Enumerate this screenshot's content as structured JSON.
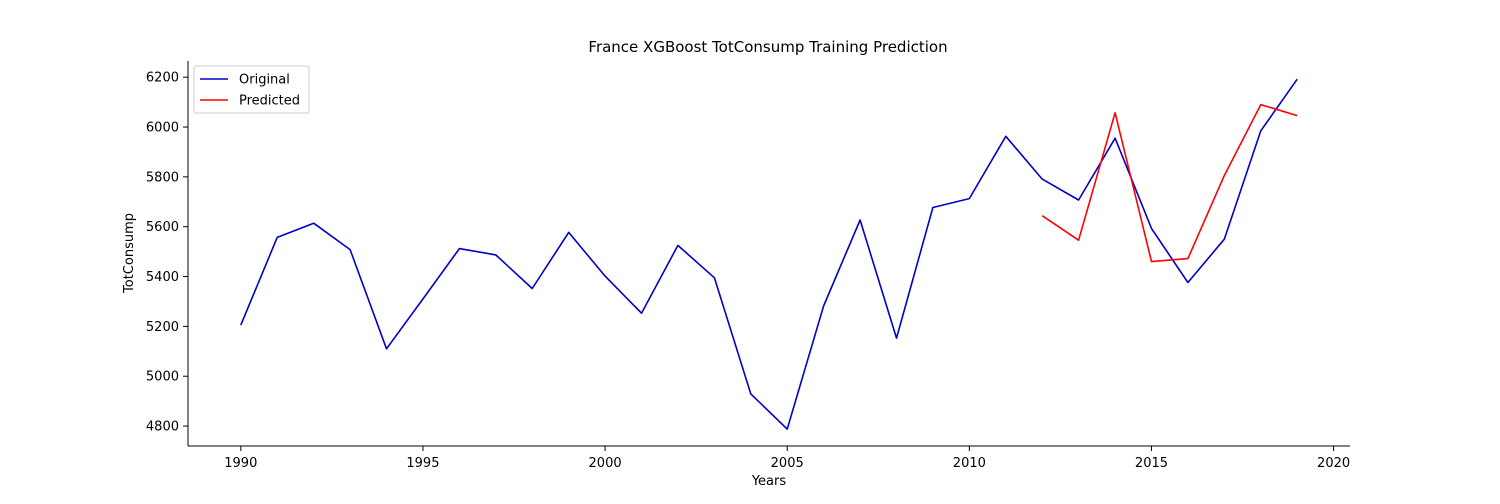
{
  "chart_data": {
    "type": "line",
    "title": "France XGBoost TotConsump Training Prediction",
    "xlabel": "Years",
    "ylabel": "TotConsump",
    "xlim": [
      1988.55,
      2020.45
    ],
    "ylim": [
      4720,
      6265
    ],
    "xticks": [
      1990,
      1995,
      2000,
      2005,
      2010,
      2015,
      2020
    ],
    "yticks": [
      4800,
      5000,
      5200,
      5400,
      5600,
      5800,
      6000,
      6200
    ],
    "grid": false,
    "legend": "top-left",
    "series": [
      {
        "name": "Original",
        "color": "#0000cc",
        "x": [
          1990,
          1991,
          1992,
          1993,
          1994,
          1995,
          1996,
          1997,
          1998,
          1999,
          2000,
          2001,
          2002,
          2003,
          2004,
          2005,
          2006,
          2007,
          2008,
          2009,
          2010,
          2011,
          2012,
          2013,
          2014,
          2015,
          2016,
          2017,
          2018,
          2019
        ],
        "values": [
          5205,
          5557,
          5614,
          5508,
          5110,
          5310,
          5512,
          5487,
          5352,
          5577,
          5402,
          5253,
          5525,
          5395,
          4929,
          4788,
          5282,
          5627,
          5153,
          5677,
          5713,
          5963,
          5791,
          5707,
          5955,
          5593,
          5376,
          5550,
          5985,
          6192
        ]
      },
      {
        "name": "Predicted",
        "color": "#ff0000",
        "x": [
          2012,
          2013,
          2014,
          2015,
          2016,
          2017,
          2018,
          2019
        ],
        "values": [
          5644,
          5546,
          6057,
          5460,
          5472,
          5805,
          6090,
          6046
        ]
      }
    ]
  }
}
